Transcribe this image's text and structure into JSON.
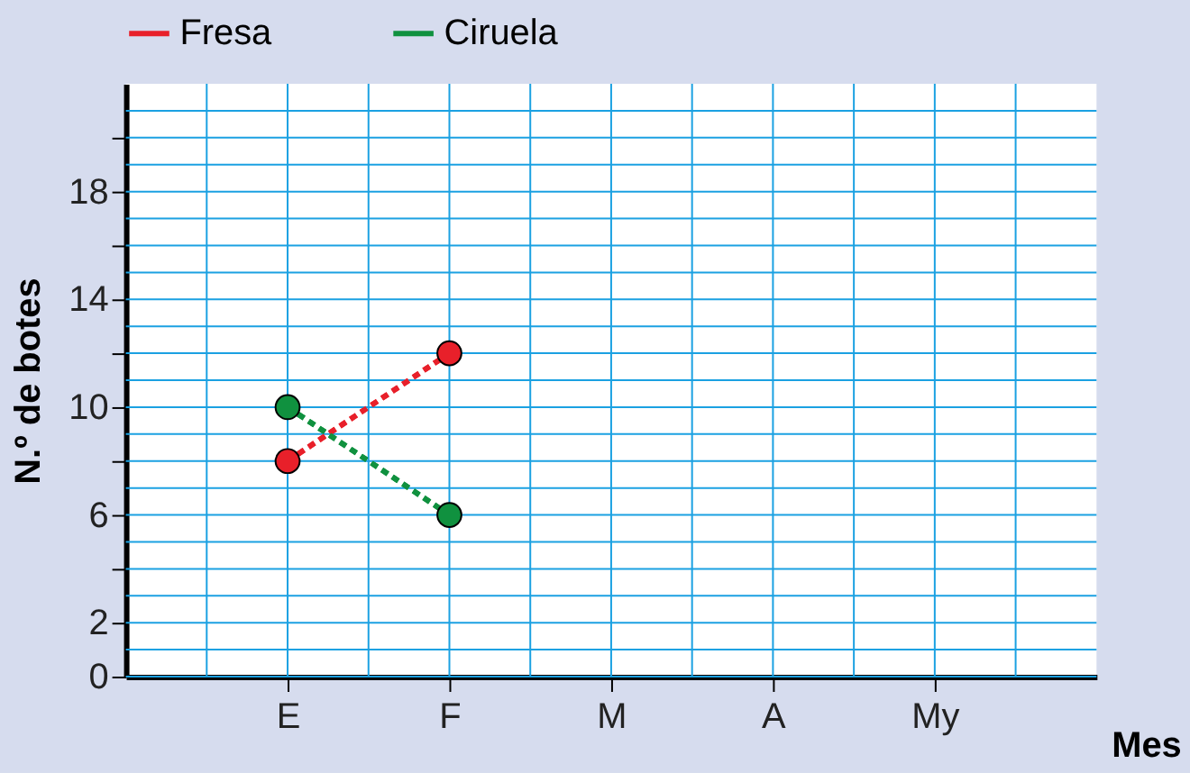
{
  "chart_data": {
    "type": "line",
    "categories": [
      "E",
      "F",
      "M",
      "A",
      "My"
    ],
    "xlabel": "Mes",
    "ylabel": "N.º de botes",
    "series": [
      {
        "name": "Fresa",
        "color": "#e8202a",
        "values": [
          8,
          12,
          null,
          null,
          null
        ]
      },
      {
        "name": "Ciruela",
        "color": "#10913f",
        "values": [
          10,
          6,
          null,
          null,
          null
        ]
      }
    ],
    "ylim": [
      0,
      22
    ],
    "yticks": [
      0,
      2,
      {
        "value": 4,
        "label": null
      },
      6,
      {
        "value": 8,
        "label": null
      },
      10,
      {
        "value": 12,
        "label": null
      },
      14,
      {
        "value": 16,
        "label": null
      },
      18,
      {
        "value": 20,
        "label": null
      }
    ],
    "grid": true,
    "legend": "top",
    "marker": "circle",
    "line_style": "dashed"
  }
}
